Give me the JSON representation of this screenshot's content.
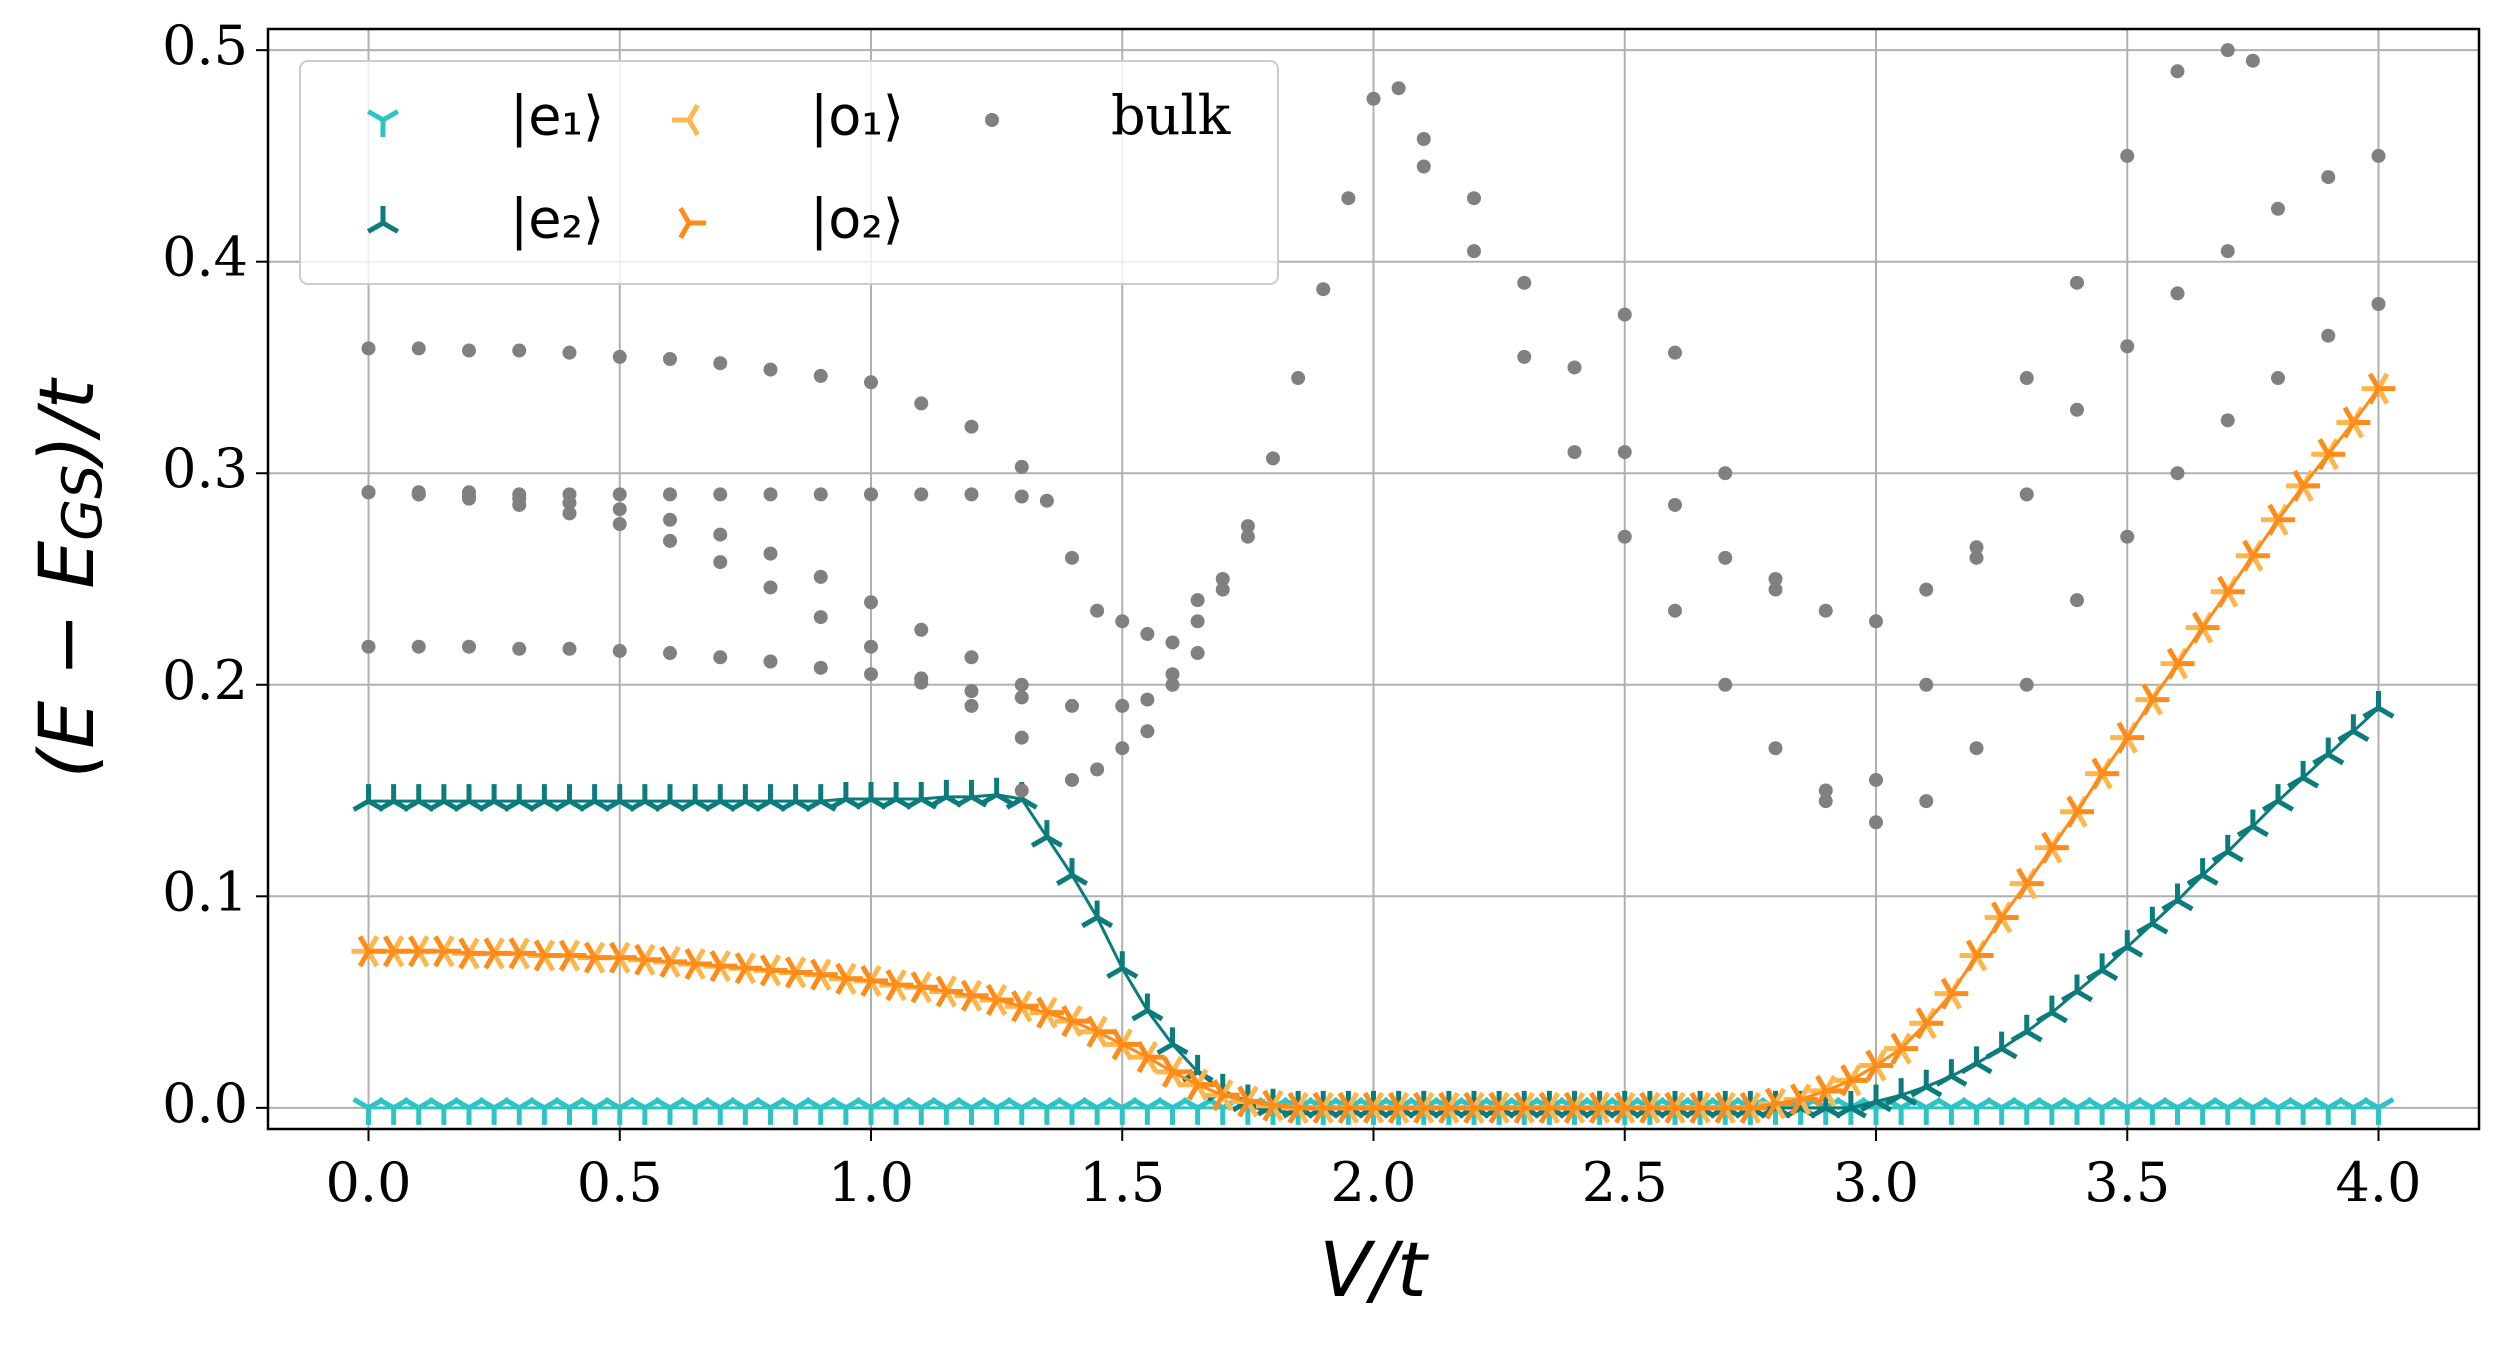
{
  "chart_data": {
    "type": "line",
    "xlabel": "V/t",
    "ylabel": {
      "main": "(E − E",
      "sub": "GS",
      "tail": ")/t"
    },
    "xlim": [
      -0.2,
      4.2
    ],
    "ylim": [
      -0.01,
      0.51
    ],
    "xticks": [
      {
        "value": 0,
        "label": "0.0"
      },
      0.5,
      {
        "value": 1,
        "label": "1.0"
      },
      1.5,
      {
        "value": 2,
        "label": "2.0"
      },
      2.5,
      {
        "value": 3,
        "label": "3.0"
      },
      3.5,
      {
        "value": 4,
        "label": "4.0"
      }
    ],
    "yticks": [
      {
        "value": 0,
        "label": "0.0"
      },
      0.1,
      0.2,
      0.3,
      0.4,
      0.5
    ],
    "grid": true,
    "legend": "upper left",
    "x": [
      0,
      0.05,
      0.1,
      0.15,
      0.2,
      0.25,
      0.3,
      0.35,
      0.4,
      0.45,
      0.5,
      0.55,
      0.6,
      0.65,
      0.7,
      0.75,
      0.8,
      0.85,
      0.9,
      0.95,
      1.0,
      1.05,
      1.1,
      1.15,
      1.2,
      1.25,
      1.3,
      1.35,
      1.4,
      1.45,
      1.5,
      1.55,
      1.6,
      1.65,
      1.7,
      1.75,
      1.8,
      1.85,
      1.9,
      1.95,
      2.0,
      2.05,
      2.1,
      2.15,
      2.2,
      2.25,
      2.3,
      2.35,
      2.4,
      2.45,
      2.5,
      2.55,
      2.6,
      2.65,
      2.7,
      2.75,
      2.8,
      2.85,
      2.9,
      2.95,
      3.0,
      3.05,
      3.1,
      3.15,
      3.2,
      3.25,
      3.3,
      3.35,
      3.4,
      3.45,
      3.5,
      3.55,
      3.6,
      3.65,
      3.7,
      3.75,
      3.8,
      3.85,
      3.9,
      3.95,
      4.0
    ],
    "series": [
      {
        "name": "|e₁⟩",
        "color": "#2ec4c4",
        "marker": "tri_down",
        "values": [
          0,
          0,
          0,
          0,
          0,
          0,
          0,
          0,
          0,
          0,
          0,
          0,
          0,
          0,
          0,
          0,
          0,
          0,
          0,
          0,
          0,
          0,
          0,
          0,
          0,
          0,
          0,
          0,
          0,
          0,
          0,
          0,
          0,
          0,
          0,
          0,
          0,
          0,
          0,
          0,
          0,
          0,
          0,
          0,
          0,
          0,
          0,
          0,
          0,
          0,
          0,
          0,
          0,
          0,
          0,
          0,
          0,
          0,
          0,
          0,
          0,
          0,
          0,
          0,
          0,
          0,
          0,
          0,
          0,
          0,
          0,
          0,
          0,
          0,
          0,
          0,
          0,
          0,
          0,
          0,
          0
        ]
      },
      {
        "name": "|e₂⟩",
        "color": "#0b7b7b",
        "marker": "tri_up",
        "values": [
          0.145,
          0.145,
          0.145,
          0.145,
          0.145,
          0.145,
          0.145,
          0.145,
          0.145,
          0.145,
          0.145,
          0.145,
          0.145,
          0.145,
          0.145,
          0.145,
          0.145,
          0.145,
          0.145,
          0.146,
          0.146,
          0.146,
          0.146,
          0.147,
          0.147,
          0.148,
          0.146,
          0.128,
          0.11,
          0.09,
          0.066,
          0.046,
          0.03,
          0.017,
          0.008,
          0.003,
          0.001,
          0,
          0,
          0,
          0,
          0,
          0,
          0,
          0,
          0,
          0,
          0,
          0,
          0,
          0,
          0,
          0,
          0,
          0,
          0,
          0,
          0,
          0,
          0,
          0.003,
          0.006,
          0.01,
          0.015,
          0.021,
          0.028,
          0.036,
          0.045,
          0.055,
          0.065,
          0.076,
          0.087,
          0.098,
          0.11,
          0.121,
          0.133,
          0.145,
          0.156,
          0.167,
          0.178,
          0.189
        ]
      },
      {
        "name": "|o₁⟩",
        "color": "#ffb74d",
        "marker": "tri_left",
        "values": [
          0.074,
          0.074,
          0.074,
          0.074,
          0.073,
          0.073,
          0.073,
          0.072,
          0.072,
          0.071,
          0.071,
          0.07,
          0.069,
          0.068,
          0.067,
          0.066,
          0.065,
          0.064,
          0.063,
          0.061,
          0.06,
          0.058,
          0.057,
          0.055,
          0.053,
          0.051,
          0.048,
          0.045,
          0.041,
          0.036,
          0.03,
          0.024,
          0.017,
          0.011,
          0.006,
          0.003,
          0.001,
          0,
          0,
          0,
          0,
          0,
          0,
          0,
          0,
          0,
          0,
          0,
          0,
          0,
          0,
          0,
          0,
          0,
          0,
          0,
          0.002,
          0.004,
          0.008,
          0.013,
          0.02,
          0.028,
          0.04,
          0.054,
          0.072,
          0.09,
          0.106,
          0.123,
          0.14,
          0.158,
          0.175,
          0.193,
          0.21,
          0.227,
          0.244,
          0.261,
          0.278,
          0.294,
          0.309,
          0.324,
          0.34
        ]
      },
      {
        "name": "|o₂⟩",
        "color": "#ff8c1a",
        "marker": "tri_right",
        "values": [
          0.074,
          0.074,
          0.074,
          0.074,
          0.073,
          0.073,
          0.073,
          0.072,
          0.072,
          0.071,
          0.071,
          0.07,
          0.069,
          0.068,
          0.067,
          0.066,
          0.065,
          0.064,
          0.063,
          0.061,
          0.06,
          0.058,
          0.057,
          0.055,
          0.053,
          0.051,
          0.048,
          0.045,
          0.041,
          0.036,
          0.03,
          0.024,
          0.017,
          0.011,
          0.006,
          0.003,
          0.001,
          0,
          0,
          0,
          0,
          0,
          0,
          0,
          0,
          0,
          0,
          0,
          0,
          0,
          0,
          0,
          0,
          0,
          0,
          0,
          0.002,
          0.004,
          0.008,
          0.013,
          0.02,
          0.028,
          0.04,
          0.054,
          0.072,
          0.09,
          0.106,
          0.123,
          0.14,
          0.158,
          0.175,
          0.193,
          0.21,
          0.227,
          0.244,
          0.261,
          0.278,
          0.294,
          0.309,
          0.324,
          0.34
        ]
      },
      {
        "name": "bulk",
        "color": "#808080",
        "marker": "dot",
        "x": [
          0,
          0.1,
          0.2,
          0.3,
          0.4,
          0.5,
          0.6,
          0.7,
          0.8,
          0.9,
          1.0,
          1.1,
          1.2,
          1.3,
          0,
          0.1,
          0.2,
          0.3,
          0.4,
          0.5,
          0.6,
          0.7,
          0.8,
          0.9,
          1.0,
          1.1,
          1.2,
          1.3,
          0,
          0.1,
          0.2,
          0.3,
          0.4,
          0.5,
          0.6,
          0.7,
          0.8,
          0.9,
          1.0,
          1.1,
          1.2,
          1.3,
          0,
          0.1,
          0.2,
          0.3,
          0.4,
          0.5,
          0.6,
          0.7,
          0.8,
          0.9,
          1.0,
          1.1,
          1.2,
          1.3,
          0,
          0.1,
          0.2,
          0.3,
          0.4,
          0.5,
          0.6,
          0.7,
          0.8,
          0.9,
          1.0,
          1.1,
          1.2,
          1.3,
          1.35,
          1.4,
          1.45,
          1.5,
          1.55,
          1.6,
          1.65,
          1.7,
          1.75,
          1.8,
          1.85,
          1.9,
          1.95,
          2.0,
          2.05,
          1.4,
          1.5,
          1.55,
          1.6,
          1.65,
          1.7,
          1.75,
          1.3,
          1.4,
          1.45,
          1.5,
          1.55,
          1.6,
          1.65,
          2.1,
          2.2,
          2.3,
          2.4,
          2.5,
          2.6,
          2.7,
          2.8,
          2.9,
          3.0,
          3.1,
          3.2,
          3.3,
          3.4,
          3.5,
          3.6,
          3.7,
          3.8,
          3.9,
          4.0,
          2.1,
          2.2,
          2.3,
          2.4,
          2.5,
          2.6,
          2.7,
          2.8,
          2.9,
          3.0,
          3.1,
          3.2,
          3.3,
          3.4,
          3.5,
          3.6,
          3.7,
          3.8,
          3.9,
          4.0,
          2.5,
          2.6,
          2.7,
          2.8,
          2.9,
          3.0,
          3.1,
          3.2,
          3.3,
          3.4,
          3.5,
          3.6,
          3.7,
          3.75
        ],
        "values": [
          0.359,
          0.359,
          0.358,
          0.358,
          0.357,
          0.355,
          0.354,
          0.352,
          0.349,
          0.346,
          0.343,
          0.333,
          0.322,
          0.303,
          0.291,
          0.291,
          0.291,
          0.29,
          0.29,
          0.29,
          0.29,
          0.29,
          0.29,
          0.29,
          0.29,
          0.29,
          0.29,
          0.289,
          0.291,
          0.29,
          0.289,
          0.288,
          0.286,
          0.283,
          0.278,
          0.271,
          0.262,
          0.251,
          0.239,
          0.226,
          0.213,
          0.2,
          0.291,
          0.29,
          0.288,
          0.285,
          0.281,
          0.276,
          0.268,
          0.258,
          0.246,
          0.232,
          0.218,
          0.203,
          0.19,
          0.175,
          0.218,
          0.218,
          0.218,
          0.217,
          0.217,
          0.216,
          0.215,
          0.213,
          0.211,
          0.208,
          0.205,
          0.201,
          0.197,
          0.194,
          0.287,
          0.26,
          0.235,
          0.23,
          0.224,
          0.22,
          0.23,
          0.25,
          0.275,
          0.307,
          0.345,
          0.387,
          0.43,
          0.477,
          0.482,
          0.19,
          0.19,
          0.193,
          0.205,
          0.24,
          0.245,
          0.27,
          0.15,
          0.155,
          0.16,
          0.17,
          0.178,
          0.2,
          0.215,
          0.445,
          0.405,
          0.355,
          0.31,
          0.27,
          0.235,
          0.2,
          0.17,
          0.145,
          0.135,
          0.145,
          0.17,
          0.2,
          0.24,
          0.27,
          0.3,
          0.325,
          0.345,
          0.365,
          0.38,
          0.458,
          0.43,
          0.39,
          0.35,
          0.31,
          0.285,
          0.26,
          0.245,
          0.235,
          0.23,
          0.245,
          0.265,
          0.29,
          0.33,
          0.36,
          0.385,
          0.405,
          0.425,
          0.44,
          0.45,
          0.375,
          0.357,
          0.3,
          0.25,
          0.15,
          0.155,
          0.2,
          0.26,
          0.345,
          0.39,
          0.45,
          0.49,
          0.5,
          0.495
        ]
      }
    ]
  }
}
